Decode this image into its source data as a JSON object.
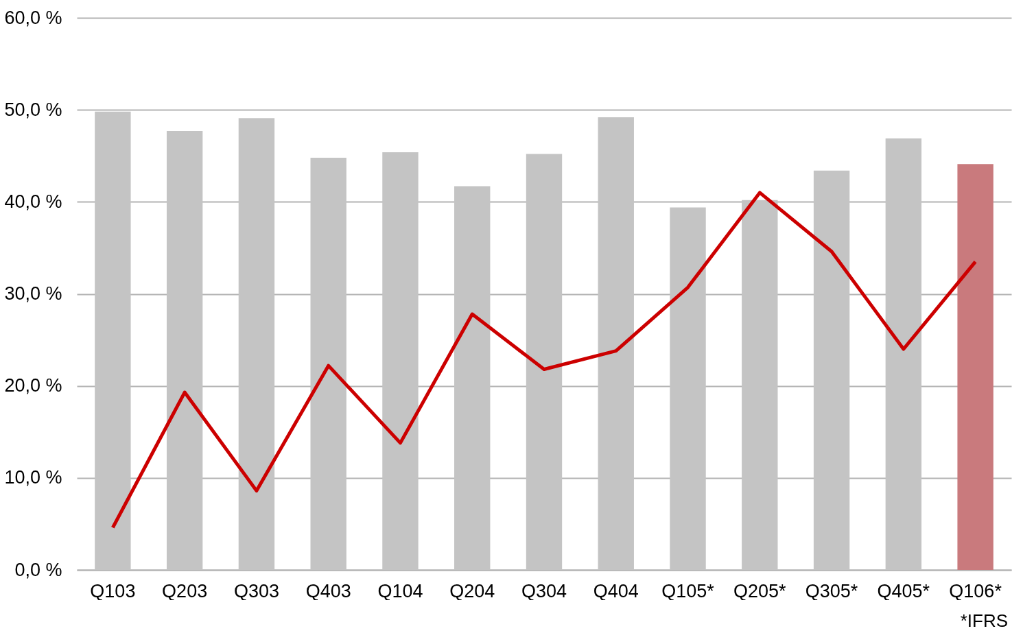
{
  "chart_data": {
    "type": "bar",
    "categories": [
      "Q103",
      "Q203",
      "Q303",
      "Q403",
      "Q104",
      "Q204",
      "Q304",
      "Q404",
      "Q105*",
      "Q205*",
      "Q305*",
      "Q405*",
      "Q106*"
    ],
    "series": [
      {
        "colors": [
          "#c4c4c4",
          "#c4c4c4",
          "#c4c4c4",
          "#c4c4c4",
          "#c4c4c4",
          "#c4c4c4",
          "#c4c4c4",
          "#c4c4c4",
          "#c4c4c4",
          "#c4c4c4",
          "#c4c4c4",
          "#c4c4c4",
          "#c97a7d"
        ],
        "values": [
          49.8,
          47.7,
          49.1,
          44.8,
          45.4,
          41.7,
          45.2,
          49.2,
          39.4,
          40.2,
          43.4,
          46.9,
          44.1
        ]
      },
      {
        "type": "line",
        "color": "#cc0000",
        "values": [
          4.6,
          19.3,
          8.6,
          22.2,
          13.8,
          27.8,
          21.8,
          23.8,
          30.7,
          41.0,
          34.6,
          24.0,
          33.5
        ]
      }
    ],
    "ylim": [
      0,
      60
    ],
    "yticks": [
      {
        "value": 0,
        "label": "0,0 %"
      },
      {
        "value": 10,
        "label": "10,0 %"
      },
      {
        "value": 20,
        "label": "20,0 %"
      },
      {
        "value": 30,
        "label": "30,0 %"
      },
      {
        "value": 40,
        "label": "40,0 %"
      },
      {
        "value": 50,
        "label": "50,0 %"
      },
      {
        "value": 60,
        "label": "60,0 %"
      }
    ],
    "grid": "y",
    "marker": "none",
    "line_style": "solid",
    "annotations": [
      "*IFRS"
    ]
  }
}
